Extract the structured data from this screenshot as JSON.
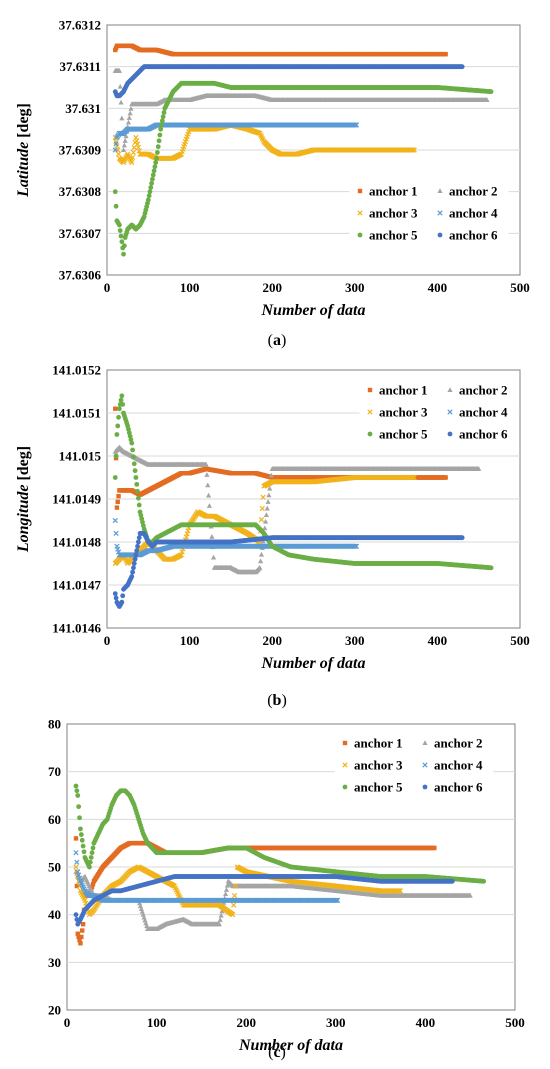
{
  "colors": {
    "anchor_1": "#E36C22",
    "anchor_2": "#A5A5A5",
    "anchor_3": "#F2B31A",
    "anchor_4": "#5B9BD5",
    "anchor_5": "#6AAE45",
    "anchor_6": "#4472C4",
    "gridline": "#D9D9D9",
    "frame": "#808080"
  },
  "chart_data": [
    {
      "type": "scatter",
      "caption_letter": "a",
      "xlabel": "Number of data",
      "ylabel_name": "Latitude",
      "ylabel_unit": "[deg]",
      "xlim": [
        0,
        500
      ],
      "xticks": [
        "0",
        "100",
        "200",
        "300",
        "400",
        "500"
      ],
      "xtick_values": [
        0,
        100,
        200,
        300,
        400,
        500
      ],
      "ylim": [
        37.6306,
        37.6312
      ],
      "yticks": [
        "37.6306",
        "37.6307",
        "37.6308",
        "37.6309",
        "37.631",
        "37.6311",
        "37.6312"
      ],
      "ytick_values": [
        37.6306,
        37.6307,
        37.6308,
        37.6309,
        37.631,
        37.6311,
        37.6312
      ],
      "grid": true,
      "legend_position": "bottom-right",
      "series": [
        {
          "name": "anchor 1",
          "marker": "square",
          "x": [
            10,
            12,
            15,
            20,
            25,
            30,
            40,
            50,
            60,
            80,
            100,
            150,
            200,
            250,
            300,
            350,
            410
          ],
          "y": [
            37.63114,
            37.63115,
            37.63115,
            37.63115,
            37.63115,
            37.63115,
            37.63114,
            37.63114,
            37.63114,
            37.63113,
            37.63113,
            37.63113,
            37.63113,
            37.63113,
            37.63113,
            37.63113,
            37.63113
          ]
        },
        {
          "name": "anchor 2",
          "marker": "triangle",
          "x": [
            10,
            15,
            20,
            30,
            40,
            50,
            60,
            70,
            80,
            100,
            120,
            150,
            180,
            200,
            250,
            300,
            350,
            400,
            460
          ],
          "y": [
            37.63109,
            37.63109,
            37.6309,
            37.63101,
            37.63101,
            37.63101,
            37.63101,
            37.63102,
            37.63102,
            37.63102,
            37.63103,
            37.63103,
            37.63103,
            37.63102,
            37.63102,
            37.63102,
            37.63102,
            37.63102,
            37.63102
          ]
        },
        {
          "name": "anchor 3",
          "marker": "x",
          "x": [
            10,
            15,
            20,
            25,
            30,
            35,
            40,
            50,
            60,
            70,
            80,
            90,
            100,
            110,
            130,
            150,
            170,
            185,
            190,
            200,
            210,
            230,
            250,
            300,
            350,
            372
          ],
          "y": [
            37.63093,
            37.63088,
            37.63087,
            37.63089,
            37.63087,
            37.63093,
            37.63089,
            37.63089,
            37.63088,
            37.63088,
            37.63088,
            37.63089,
            37.63095,
            37.63095,
            37.63095,
            37.63096,
            37.63095,
            37.63094,
            37.63092,
            37.6309,
            37.63089,
            37.63089,
            37.6309,
            37.6309,
            37.6309,
            37.6309
          ]
        },
        {
          "name": "anchor 4",
          "marker": "x",
          "x": [
            10,
            12,
            15,
            20,
            25,
            30,
            40,
            50,
            60,
            80,
            100,
            150,
            200,
            250,
            302
          ],
          "y": [
            37.6309,
            37.63093,
            37.63094,
            37.63094,
            37.63095,
            37.63095,
            37.63095,
            37.63095,
            37.63096,
            37.63096,
            37.63096,
            37.63096,
            37.63096,
            37.63096,
            37.63096
          ]
        },
        {
          "name": "anchor 5",
          "marker": "circle",
          "x": [
            10,
            12,
            15,
            18,
            20,
            22,
            25,
            30,
            35,
            40,
            45,
            50,
            55,
            60,
            65,
            70,
            75,
            80,
            85,
            90,
            100,
            110,
            130,
            150,
            200,
            250,
            300,
            350,
            400,
            465
          ],
          "y": [
            37.6308,
            37.63073,
            37.63072,
            37.63068,
            37.63065,
            37.63069,
            37.63071,
            37.63072,
            37.63071,
            37.63072,
            37.63074,
            37.63078,
            37.63083,
            37.63088,
            37.63095,
            37.631,
            37.63102,
            37.63104,
            37.63105,
            37.63106,
            37.63106,
            37.63106,
            37.63106,
            37.63105,
            37.63105,
            37.63105,
            37.63105,
            37.63105,
            37.63105,
            37.63104
          ]
        },
        {
          "name": "anchor 6",
          "marker": "circle",
          "x": [
            10,
            12,
            15,
            20,
            25,
            30,
            35,
            40,
            45,
            50,
            60,
            80,
            100,
            150,
            200,
            250,
            300,
            350,
            400,
            430
          ],
          "y": [
            37.63104,
            37.63103,
            37.63103,
            37.63104,
            37.63106,
            37.63107,
            37.63108,
            37.63109,
            37.6311,
            37.6311,
            37.6311,
            37.6311,
            37.6311,
            37.6311,
            37.6311,
            37.6311,
            37.6311,
            37.6311,
            37.6311,
            37.6311
          ]
        }
      ]
    },
    {
      "type": "scatter",
      "caption_letter": "b",
      "xlabel": "Number of data",
      "ylabel_name": "Longitude",
      "ylabel_unit": "[deg]",
      "xlim": [
        0,
        500
      ],
      "xticks": [
        "0",
        "100",
        "200",
        "300",
        "400",
        "500"
      ],
      "xtick_values": [
        0,
        100,
        200,
        300,
        400,
        500
      ],
      "ylim": [
        141.0146,
        141.0152
      ],
      "yticks": [
        "141.0146",
        "141.0147",
        "141.0148",
        "141.0149",
        "141.015",
        "141.0151",
        "141.0152"
      ],
      "ytick_values": [
        141.0146,
        141.0147,
        141.0148,
        141.0149,
        141.015,
        141.0151,
        141.0152
      ],
      "grid": true,
      "legend_position": "top-right",
      "series": [
        {
          "name": "anchor 1",
          "marker": "square",
          "x": [
            10,
            12,
            15,
            20,
            25,
            30,
            40,
            50,
            60,
            70,
            80,
            90,
            100,
            120,
            150,
            180,
            200,
            250,
            300,
            350,
            410
          ],
          "y": [
            141.01511,
            141.01488,
            141.01492,
            141.01492,
            141.01492,
            141.01492,
            141.01491,
            141.01492,
            141.01493,
            141.01494,
            141.01495,
            141.01496,
            141.01496,
            141.01497,
            141.01496,
            141.01496,
            141.01495,
            141.01495,
            141.01495,
            141.01495,
            141.01495
          ]
        },
        {
          "name": "anchor 2",
          "marker": "triangle",
          "x": [
            10,
            15,
            20,
            30,
            40,
            50,
            60,
            70,
            80,
            90,
            100,
            120,
            130,
            140,
            150,
            160,
            170,
            180,
            185,
            200,
            250,
            300,
            350,
            400,
            450
          ],
          "y": [
            141.01501,
            141.01502,
            141.01501,
            141.015,
            141.01499,
            141.01498,
            141.01498,
            141.01498,
            141.01498,
            141.01498,
            141.01498,
            141.01498,
            141.01474,
            141.01474,
            141.01474,
            141.01473,
            141.01473,
            141.01473,
            141.01474,
            141.01497,
            141.01497,
            141.01497,
            141.01497,
            141.01497,
            141.01497
          ]
        },
        {
          "name": "anchor 3",
          "marker": "x",
          "x": [
            10,
            15,
            20,
            25,
            30,
            40,
            50,
            60,
            70,
            80,
            90,
            100,
            110,
            120,
            130,
            150,
            170,
            185,
            190,
            200,
            250,
            300,
            372
          ],
          "y": [
            141.01475,
            141.01476,
            141.01477,
            141.01475,
            141.01476,
            141.01478,
            141.0148,
            141.01478,
            141.01476,
            141.01476,
            141.01477,
            141.01484,
            141.01487,
            141.01486,
            141.01486,
            141.01484,
            141.01482,
            141.0148,
            141.01493,
            141.01494,
            141.01494,
            141.01495,
            141.01495
          ]
        },
        {
          "name": "anchor 4",
          "marker": "x",
          "x": [
            10,
            12,
            15,
            20,
            25,
            30,
            40,
            50,
            60,
            80,
            100,
            150,
            200,
            250,
            302
          ],
          "y": [
            141.01485,
            141.01479,
            141.01477,
            141.01477,
            141.01477,
            141.01477,
            141.01477,
            141.01478,
            141.01478,
            141.01479,
            141.01479,
            141.01479,
            141.01479,
            141.01479,
            141.01479
          ]
        },
        {
          "name": "anchor 5",
          "marker": "circle",
          "x": [
            10,
            12,
            15,
            18,
            20,
            25,
            30,
            35,
            40,
            45,
            50,
            55,
            60,
            70,
            80,
            90,
            100,
            120,
            150,
            180,
            190,
            200,
            220,
            250,
            300,
            350,
            400,
            465
          ],
          "y": [
            141.01495,
            141.01505,
            141.01511,
            141.01514,
            141.0151,
            141.01507,
            141.01503,
            141.01495,
            141.01487,
            141.01483,
            141.0148,
            141.0148,
            141.01481,
            141.01482,
            141.01483,
            141.01484,
            141.01484,
            141.01484,
            141.01484,
            141.01484,
            141.01482,
            141.01479,
            141.01477,
            141.01476,
            141.01475,
            141.01475,
            141.01475,
            141.01474
          ]
        },
        {
          "name": "anchor 6",
          "marker": "circle",
          "x": [
            10,
            12,
            15,
            18,
            20,
            25,
            30,
            35,
            40,
            45,
            50,
            55,
            60,
            80,
            100,
            150,
            200,
            250,
            300,
            350,
            400,
            430
          ],
          "y": [
            141.01468,
            141.01466,
            141.01465,
            141.01466,
            141.01469,
            141.0147,
            141.01472,
            141.01477,
            141.01482,
            141.01482,
            141.0148,
            141.01479,
            141.0148,
            141.0148,
            141.0148,
            141.0148,
            141.01481,
            141.01481,
            141.01481,
            141.01481,
            141.01481,
            141.01481
          ]
        }
      ]
    },
    {
      "type": "scatter",
      "caption_letter": "c",
      "xlabel": "Number of data",
      "ylabel_name": "Altitude",
      "ylabel_unit": "[m]",
      "xlim": [
        0,
        500
      ],
      "xticks": [
        "0",
        "100",
        "200",
        "300",
        "400",
        "500"
      ],
      "xtick_values": [
        0,
        100,
        200,
        300,
        400,
        500
      ],
      "ylim": [
        20,
        80
      ],
      "yticks": [
        "20",
        "30",
        "40",
        "50",
        "60",
        "70",
        "80"
      ],
      "ytick_values": [
        20,
        30,
        40,
        50,
        60,
        70,
        80
      ],
      "grid": true,
      "legend_position": "top-right",
      "series": [
        {
          "name": "anchor 1",
          "marker": "square",
          "x": [
            10,
            12,
            15,
            18,
            20,
            25,
            30,
            40,
            50,
            60,
            70,
            80,
            90,
            100,
            110,
            120,
            150,
            180,
            200,
            250,
            300,
            350,
            410
          ],
          "y": [
            56,
            36,
            34,
            38,
            44,
            44,
            47,
            50,
            52,
            54,
            55,
            55,
            55,
            54,
            53,
            53,
            53,
            54,
            54,
            54,
            54,
            54,
            54
          ]
        },
        {
          "name": "anchor 2",
          "marker": "triangle",
          "x": [
            10,
            15,
            20,
            30,
            40,
            50,
            60,
            80,
            90,
            95,
            100,
            110,
            130,
            140,
            150,
            160,
            170,
            180,
            185,
            200,
            250,
            300,
            350,
            400,
            450
          ],
          "y": [
            49,
            47,
            48,
            44,
            44,
            43,
            43,
            43,
            37,
            37,
            37,
            38,
            39,
            38,
            38,
            38,
            38,
            47,
            46,
            46,
            46,
            45,
            44,
            44,
            44
          ]
        },
        {
          "name": "anchor 3",
          "marker": "x",
          "x": [
            10,
            15,
            20,
            25,
            30,
            40,
            50,
            60,
            70,
            80,
            90,
            100,
            110,
            120,
            130,
            150,
            170,
            185,
            190,
            200,
            250,
            300,
            350,
            372
          ],
          "y": [
            50,
            45,
            43,
            40,
            41,
            44,
            46,
            47,
            49,
            50,
            49,
            48,
            47,
            46,
            42,
            42,
            42,
            40,
            50,
            49,
            47,
            46,
            45,
            45
          ]
        },
        {
          "name": "anchor 4",
          "marker": "x",
          "x": [
            10,
            12,
            15,
            20,
            25,
            30,
            40,
            50,
            60,
            80,
            100,
            150,
            200,
            250,
            302
          ],
          "y": [
            53,
            49,
            47,
            45,
            44,
            44,
            43,
            43,
            43,
            43,
            43,
            43,
            43,
            43,
            43
          ]
        },
        {
          "name": "anchor 5",
          "marker": "circle",
          "x": [
            10,
            12,
            15,
            20,
            25,
            30,
            40,
            45,
            50,
            55,
            60,
            65,
            70,
            75,
            80,
            85,
            90,
            100,
            120,
            150,
            180,
            200,
            220,
            250,
            300,
            350,
            400,
            465
          ],
          "y": [
            67,
            65,
            58,
            52,
            50,
            55,
            59,
            60,
            63,
            65,
            66,
            66,
            65,
            63,
            60,
            57,
            55,
            53,
            53,
            53,
            54,
            54,
            52,
            50,
            49,
            48,
            48,
            47
          ]
        },
        {
          "name": "anchor 6",
          "marker": "circle",
          "x": [
            10,
            12,
            15,
            20,
            25,
            30,
            40,
            50,
            60,
            80,
            100,
            120,
            150,
            180,
            200,
            220,
            250,
            300,
            350,
            400,
            430
          ],
          "y": [
            40,
            38,
            39,
            41,
            42,
            43,
            44,
            45,
            45,
            46,
            47,
            48,
            48,
            48,
            48,
            48,
            48,
            48,
            47,
            47,
            47
          ]
        }
      ]
    }
  ]
}
